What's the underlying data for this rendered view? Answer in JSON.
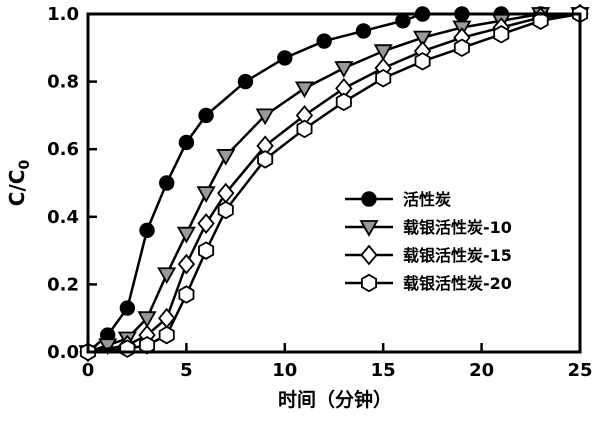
{
  "chart_data": {
    "type": "line",
    "title": "",
    "xlabel": "时间（分钟）",
    "ylabel": "C/C0",
    "xlim": [
      0,
      25
    ],
    "ylim": [
      0.0,
      1.0
    ],
    "xticks": [
      0,
      5,
      10,
      15,
      20,
      25
    ],
    "xtick_labels": [
      "0",
      "5",
      "10",
      "15",
      "20",
      "25"
    ],
    "yticks": [
      0.0,
      0.2,
      0.4,
      0.6,
      0.8,
      1.0
    ],
    "ytick_labels": [
      "0.0",
      "0.2",
      "0.4",
      "0.6",
      "0.8",
      "1.0"
    ],
    "grid": false,
    "legend_position": "inside-center-right",
    "axis_color": "#000000",
    "background_color": "#ffffff",
    "series": [
      {
        "name": "活性炭",
        "marker": "circle-filled",
        "marker_fill": "#000000",
        "line_color": "#000000",
        "points": [
          [
            0,
            0.0
          ],
          [
            1,
            0.05
          ],
          [
            2,
            0.13
          ],
          [
            3,
            0.36
          ],
          [
            4,
            0.5
          ],
          [
            5,
            0.62
          ],
          [
            6,
            0.7
          ],
          [
            8,
            0.8
          ],
          [
            10,
            0.87
          ],
          [
            12,
            0.92
          ],
          [
            14,
            0.95
          ],
          [
            16,
            0.98
          ],
          [
            17,
            1.0
          ],
          [
            19,
            1.0
          ],
          [
            21,
            1.0
          ],
          [
            23,
            1.0
          ],
          [
            25,
            1.0
          ]
        ]
      },
      {
        "name": "载银活性炭-10",
        "marker": "triangle-down-filled",
        "marker_fill": "#999999",
        "line_color": "#000000",
        "points": [
          [
            0,
            0.0
          ],
          [
            1,
            0.02
          ],
          [
            2,
            0.04
          ],
          [
            3,
            0.1
          ],
          [
            4,
            0.23
          ],
          [
            5,
            0.35
          ],
          [
            6,
            0.47
          ],
          [
            7,
            0.58
          ],
          [
            9,
            0.7
          ],
          [
            11,
            0.78
          ],
          [
            13,
            0.84
          ],
          [
            15,
            0.89
          ],
          [
            17,
            0.93
          ],
          [
            19,
            0.96
          ],
          [
            21,
            0.98
          ],
          [
            23,
            1.0
          ],
          [
            25,
            1.0
          ]
        ]
      },
      {
        "name": "载银活性炭-15",
        "marker": "diamond-open",
        "marker_fill": "#ffffff",
        "line_color": "#000000",
        "points": [
          [
            0,
            0.0
          ],
          [
            2,
            0.02
          ],
          [
            3,
            0.05
          ],
          [
            4,
            0.1
          ],
          [
            5,
            0.26
          ],
          [
            6,
            0.38
          ],
          [
            7,
            0.47
          ],
          [
            9,
            0.61
          ],
          [
            11,
            0.7
          ],
          [
            13,
            0.78
          ],
          [
            15,
            0.84
          ],
          [
            17,
            0.89
          ],
          [
            19,
            0.93
          ],
          [
            21,
            0.96
          ],
          [
            23,
            0.99
          ],
          [
            25,
            1.0
          ]
        ]
      },
      {
        "name": "载银活性炭-20",
        "marker": "hexagon-open",
        "marker_fill": "#ffffff",
        "line_color": "#000000",
        "points": [
          [
            0,
            0.0
          ],
          [
            2,
            0.01
          ],
          [
            3,
            0.02
          ],
          [
            4,
            0.05
          ],
          [
            5,
            0.17
          ],
          [
            6,
            0.3
          ],
          [
            7,
            0.42
          ],
          [
            9,
            0.57
          ],
          [
            11,
            0.66
          ],
          [
            13,
            0.74
          ],
          [
            15,
            0.81
          ],
          [
            17,
            0.86
          ],
          [
            19,
            0.9
          ],
          [
            21,
            0.94
          ],
          [
            23,
            0.98
          ],
          [
            25,
            1.0
          ]
        ]
      }
    ]
  }
}
